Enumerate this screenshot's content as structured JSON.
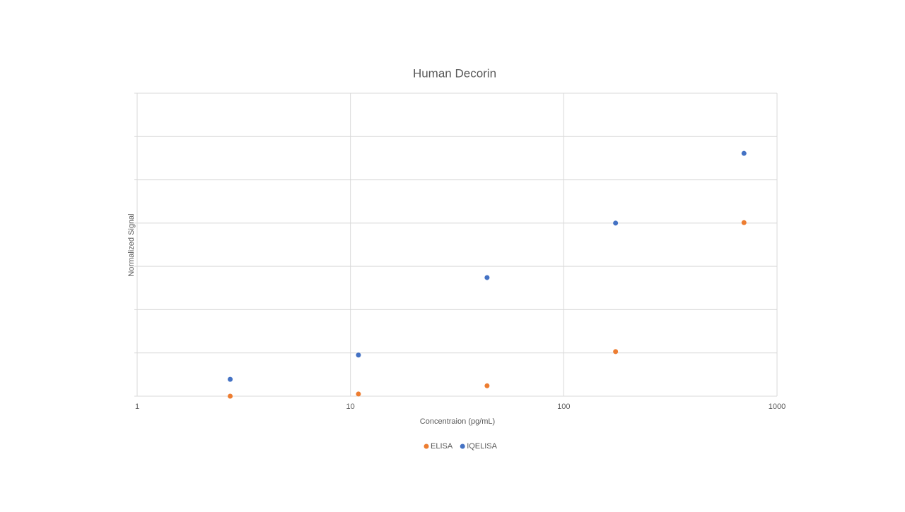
{
  "chart_data": {
    "type": "scatter",
    "title": "Human Decorin",
    "x_label": "Concentraion (pg/mL)",
    "y_label": "Normalized Signal",
    "x_log": true,
    "xlim": [
      1,
      1000
    ],
    "xticks": [
      1,
      10,
      100,
      1000
    ],
    "ylim": [
      0,
      7
    ],
    "yticks": [
      0,
      1,
      2,
      3,
      4,
      5,
      6,
      7
    ],
    "ytick_labels": false,
    "grid": true,
    "legend": "bottom",
    "series": [
      {
        "name": "ELISA",
        "color": "#ed7d31",
        "x": [
          2.73,
          10.9,
          43.7,
          175,
          700
        ],
        "values": [
          0,
          0.05,
          0.24,
          1.03,
          4.01
        ]
      },
      {
        "name": "IQELISA",
        "color": "#4472c4",
        "x": [
          2.73,
          10.9,
          43.7,
          175,
          700
        ],
        "values": [
          0.39,
          0.95,
          2.74,
          4.0,
          5.61
        ]
      }
    ]
  }
}
